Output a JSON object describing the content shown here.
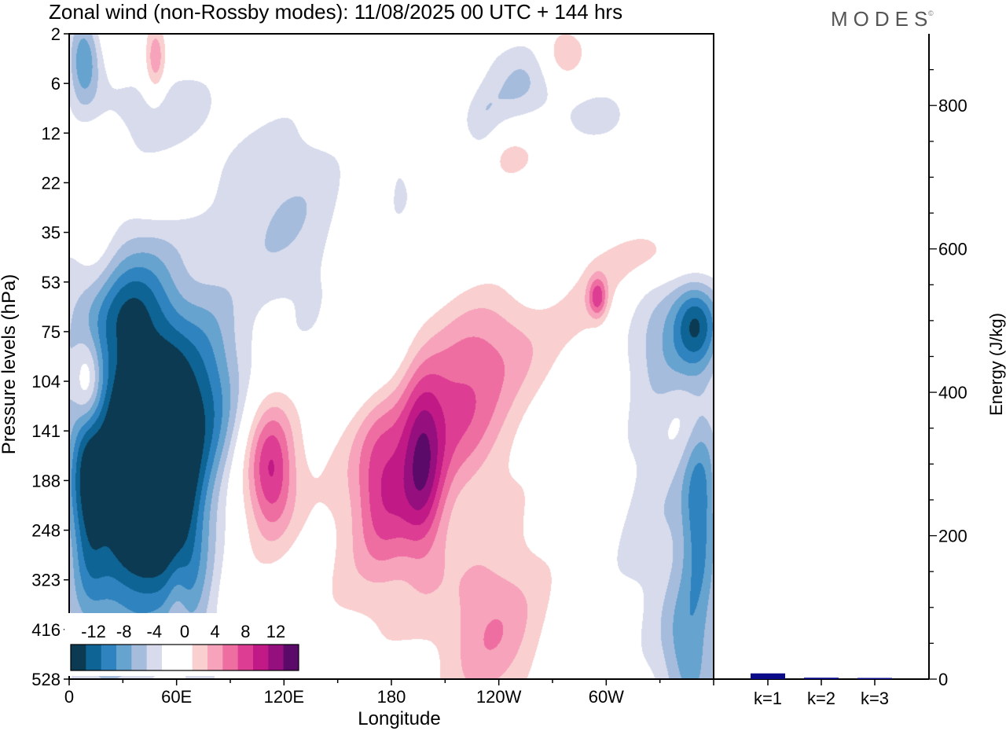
{
  "header": {
    "title": "Zonal wind (non-Rossby modes):  11/08/2025  00 UTC  + 144 hrs",
    "brand": "MODES",
    "brand_mark": "©"
  },
  "chart_data": [
    {
      "type": "heatmap",
      "title": "Zonal wind (non-Rossby modes):  11/08/2025  00 UTC  + 144 hrs",
      "xlabel": "Longitude",
      "ylabel": "Pressure levels (hPa)",
      "x_ticks": [
        "0",
        "60E",
        "120E",
        "180",
        "120W",
        "60W"
      ],
      "y_ticks": [
        "2",
        "6",
        "12",
        "22",
        "35",
        "53",
        "75",
        "104",
        "141",
        "188",
        "248",
        "323",
        "416",
        "528"
      ],
      "colorbar": {
        "labels": [
          "-12",
          "-8",
          "-4",
          "0",
          "4",
          "8",
          "12"
        ],
        "colors": [
          "#0b3a52",
          "#0e6494",
          "#2f83bf",
          "#67a3cf",
          "#a5bcdd",
          "#d7dbec",
          "#ffffff",
          "#ffffff",
          "#f9cfd0",
          "#f6a3bb",
          "#ee6ea2",
          "#dd3e93",
          "#c11a86",
          "#960f7e",
          "#5c0a6a"
        ]
      },
      "blobs": [
        {
          "lon": 45,
          "lev": 8.3,
          "rlon": 18,
          "rlev": 2.5,
          "v": -14
        },
        {
          "lon": 30,
          "lev": 8.5,
          "rlon": 28,
          "rlev": 3.5,
          "v": -8
        },
        {
          "lon": 75,
          "lev": 7.4,
          "rlon": 22,
          "rlev": 1.9,
          "v": -8
        },
        {
          "lon": 10,
          "lev": 9.2,
          "rlon": 10,
          "rlev": 2.0,
          "v": -7
        },
        {
          "lon": 60,
          "lev": 9.6,
          "rlon": 18,
          "rlev": 1.8,
          "v": -6
        },
        {
          "lon": 40,
          "lev": 7.0,
          "rlon": 50,
          "rlev": 3.5,
          "v": -2.8
        },
        {
          "lon": 20,
          "lev": 11.2,
          "rlon": 30,
          "rlev": 3.0,
          "v": -2.5
        },
        {
          "lon": 70,
          "lev": 11.5,
          "rlon": 14,
          "rlev": 2.0,
          "v": -4
        },
        {
          "lon": 28,
          "lev": 5.5,
          "rlon": 26,
          "rlev": 1.0,
          "v": -4
        },
        {
          "lon": 8,
          "lev": 0.5,
          "rlon": 9,
          "rlev": 0.9,
          "v": -8
        },
        {
          "lon": 45,
          "lev": 1.4,
          "rlon": 40,
          "rlev": 0.7,
          "v": -2.2
        },
        {
          "lon": 95,
          "lev": 3.2,
          "rlon": 60,
          "rlev": 1.8,
          "v": -2.5
        },
        {
          "lon": 130,
          "lev": 4.5,
          "rlon": 30,
          "rlev": 2.2,
          "v": -2.2
        },
        {
          "lon": 165,
          "lev": 6.7,
          "rlon": 40,
          "rlev": 1.0,
          "v": -2.5
        },
        {
          "lon": 183,
          "lev": 2.5,
          "rlon": 12,
          "rlev": 1.5,
          "v": -2.3
        },
        {
          "lon": 248,
          "lev": 1.0,
          "rlon": 28,
          "rlev": 0.8,
          "v": -5
        },
        {
          "lon": 230,
          "lev": 2.2,
          "rlon": 10,
          "rlev": 1.5,
          "v": -2.5
        },
        {
          "lon": 295,
          "lev": 1.7,
          "rlon": 22,
          "rlev": 0.6,
          "v": -2.5
        },
        {
          "lon": 335,
          "lev": 6.0,
          "rlon": 28,
          "rlev": 1.3,
          "v": -5
        },
        {
          "lon": 350,
          "lev": 5.8,
          "rlon": 12,
          "rlev": 0.8,
          "v": -7
        },
        {
          "lon": 340,
          "lev": 10.0,
          "rlon": 35,
          "rlev": 4.0,
          "v": -3.5
        },
        {
          "lon": 352,
          "lev": 9.5,
          "rlon": 10,
          "rlev": 2.0,
          "v": -7
        },
        {
          "lon": 345,
          "lev": 12.5,
          "rlon": 14,
          "rlev": 1.5,
          "v": -5
        },
        {
          "lon": 265,
          "lev": 4.8,
          "rlon": 24,
          "rlev": 0.7,
          "v": -2.2
        },
        {
          "lon": 10,
          "lev": 7.0,
          "rlon": 8,
          "rlev": 0.9,
          "v": 7
        },
        {
          "lon": 15,
          "lev": 4.2,
          "rlon": 12,
          "rlev": 1.5,
          "v": 3
        },
        {
          "lon": 45,
          "lev": 3.2,
          "rlon": 40,
          "rlev": 0.8,
          "v": 2.5
        },
        {
          "lon": 45,
          "lev": 6.5,
          "rlon": 12,
          "rlev": 0.8,
          "v": 2.5
        },
        {
          "lon": 48,
          "lev": 0.5,
          "rlon": 6,
          "rlev": 0.8,
          "v": 6
        },
        {
          "lon": 110,
          "lev": 8.8,
          "rlon": 20,
          "rlev": 1.8,
          "v": 4
        },
        {
          "lon": 113,
          "lev": 8.8,
          "rlon": 12,
          "rlev": 1.2,
          "v": 6.5
        },
        {
          "lon": 170,
          "lev": 9.2,
          "rlon": 35,
          "rlev": 2.8,
          "v": 3.5
        },
        {
          "lon": 175,
          "lev": 9.0,
          "rlon": 15,
          "rlev": 1.6,
          "v": 6
        },
        {
          "lon": 197,
          "lev": 8.7,
          "rlon": 12,
          "rlev": 1.8,
          "v": 9
        },
        {
          "lon": 217,
          "lev": 7.5,
          "rlon": 28,
          "rlev": 1.6,
          "v": 7
        },
        {
          "lon": 245,
          "lev": 6.3,
          "rlon": 30,
          "rlev": 1.2,
          "v": 4
        },
        {
          "lon": 290,
          "lev": 5.2,
          "rlon": 28,
          "rlev": 1.0,
          "v": 3.5
        },
        {
          "lon": 295,
          "lev": 5.3,
          "rlon": 5,
          "rlev": 0.4,
          "v": 7
        },
        {
          "lon": 330,
          "lev": 4.5,
          "rlon": 30,
          "rlev": 0.6,
          "v": 3
        },
        {
          "lon": 235,
          "lev": 12.0,
          "rlon": 25,
          "rlev": 1.5,
          "v": 3.5
        },
        {
          "lon": 230,
          "lev": 11.2,
          "rlon": 45,
          "rlev": 3.0,
          "v": 2.3
        },
        {
          "lon": 240,
          "lev": 2.5,
          "rlon": 30,
          "rlev": 0.6,
          "v": 2.5
        },
        {
          "lon": 225,
          "lev": 0.9,
          "rlon": 25,
          "rlev": 0.6,
          "v": 3
        },
        {
          "lon": 275,
          "lev": 0.4,
          "rlon": 12,
          "rlev": 0.6,
          "v": 4
        },
        {
          "lon": 60,
          "lev": 11.8,
          "rlon": 6,
          "rlev": 1.5,
          "v": 2.5
        },
        {
          "lon": 165,
          "lev": 6.0,
          "rlon": 10,
          "rlev": 0.7,
          "v": 2.5
        },
        {
          "lon": 345,
          "lev": 7.8,
          "rlon": 14,
          "rlev": 1.0,
          "v": 2.5
        }
      ],
      "energy_panel": {
        "ylabel": "Energy (J/kg)",
        "ylim": [
          0,
          900
        ],
        "y_ticks": [
          0,
          200,
          400,
          600,
          800
        ],
        "categories": [
          "k=1",
          "k=2",
          "k=3"
        ],
        "values": [
          8,
          2,
          1
        ],
        "bar_color": "#0b0b8a"
      }
    }
  ]
}
